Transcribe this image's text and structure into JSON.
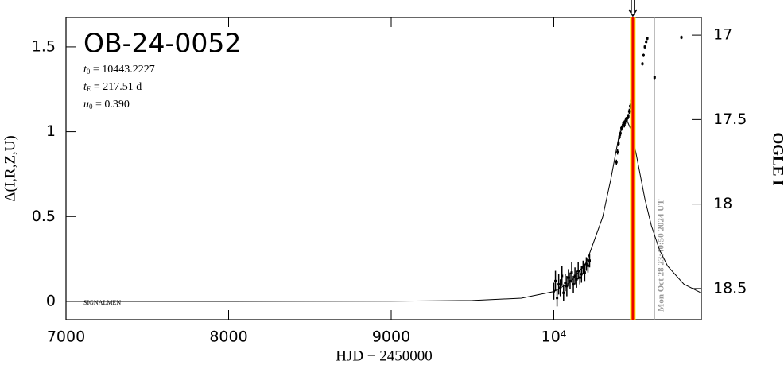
{
  "chart_data": {
    "type": "lightcurve",
    "title": "OB-24-0052",
    "parameters": [
      {
        "symbol": "t",
        "sub": "0",
        "text": " = 10443.2227"
      },
      {
        "symbol": "t",
        "sub": "E",
        "text": " = 217.51 d"
      },
      {
        "symbol": "u",
        "sub": "0",
        "text": " = 0.390"
      }
    ],
    "site_label": "SIGNALMEN",
    "x_label": "HJD − 2450000",
    "y_label": "Δ(I,R,Z,U)",
    "y2_label": "OGLE I",
    "xlim": [
      7000,
      10907
    ],
    "xticks": [
      7000,
      8000,
      9000,
      {
        "value": 10000,
        "label": "10⁴"
      }
    ],
    "ylim": [
      -0.108,
      1.673
    ],
    "yticks": [
      0,
      0.5,
      1,
      1.5
    ],
    "y2lim": [
      18.684,
      16.896
    ],
    "y2ticks": [
      17,
      17.5,
      18,
      18.5
    ],
    "model": {
      "color": "#000000",
      "x": [
        7000,
        8000,
        9000,
        9500,
        9800,
        10000,
        10100,
        10200,
        10300,
        10350,
        10400,
        10443,
        10480,
        10520,
        10560,
        10600,
        10650,
        10700,
        10800,
        10900
      ],
      "values": [
        0,
        0,
        0.001,
        0.005,
        0.0185,
        0.0576,
        0.111,
        0.2297,
        0.495,
        0.717,
        0.971,
        1.082,
        0.999,
        0.802,
        0.604,
        0.446,
        0.3034,
        0.2078,
        0.1012,
        0.053
      ]
    },
    "data": {
      "color": "#000000",
      "x": [
        10000,
        10010,
        10020,
        10030,
        10040,
        10050,
        10060,
        10070,
        10080,
        10090,
        10100,
        10110,
        10120,
        10130,
        10140,
        10150,
        10160,
        10170,
        10180,
        10190,
        10200,
        10210,
        10220,
        10385,
        10392,
        10398,
        10404,
        10410,
        10416,
        10422,
        10428,
        10434,
        10440,
        10446,
        10452,
        10458,
        10464,
        10470,
        10476,
        10482,
        10488,
        10545,
        10552,
        10560,
        10568,
        10575,
        10620,
        10785
      ],
      "values": [
        0.06,
        0.12,
        0.02,
        0.1,
        0.08,
        0.15,
        0.05,
        0.11,
        0.09,
        0.14,
        0.12,
        0.17,
        0.1,
        0.15,
        0.13,
        0.18,
        0.14,
        0.16,
        0.2,
        0.17,
        0.22,
        0.21,
        0.24,
        0.82,
        0.88,
        0.93,
        0.97,
        0.99,
        1.02,
        1.03,
        1.05,
        1.04,
        1.06,
        1.07,
        1.08,
        1.09,
        1.12,
        1.15,
        1.18,
        1.22,
        1.25,
        1.4,
        1.45,
        1.5,
        1.53,
        1.55,
        1.32,
        1.556
      ],
      "errors": [
        0.05,
        0.06,
        0.05,
        0.06,
        0.05,
        0.06,
        0.05,
        0.05,
        0.06,
        0.05,
        0.05,
        0.06,
        0.05,
        0.05,
        0.05,
        0.05,
        0.04,
        0.05,
        0.04,
        0.05,
        0.04,
        0.04,
        0.04,
        0.015,
        0.015,
        0.015,
        0.015,
        0.015,
        0.015,
        0.015,
        0.015,
        0.015,
        0.015,
        0.015,
        0.015,
        0.015,
        0.015,
        0.015,
        0.015,
        0.015,
        0.015,
        0.01,
        0.01,
        0.01,
        0.01,
        0.01,
        0.01,
        0.01
      ]
    },
    "now_line": {
      "x": 10486,
      "color": "#ee0000",
      "halo": "#ffee00"
    },
    "date_line": {
      "x": 10618,
      "color": "#999999",
      "label": "Mon Oct 28 23:40:50 2024 UT"
    }
  }
}
